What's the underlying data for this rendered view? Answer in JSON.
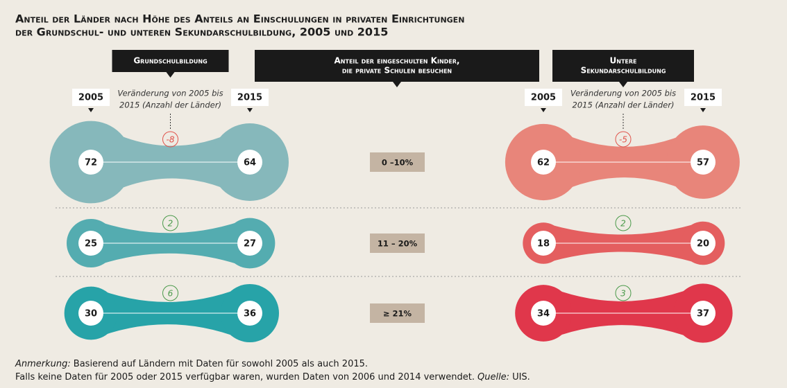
{
  "chart_data": {
    "type": "dumbbell",
    "title": [
      "Anteil der Länder nach Höhe des Anteils an Einschulungen in privaten Einrichtungen",
      "der Grundschul- und unteren Sekundarschulbildung, 2005 und 2015"
    ],
    "center_header": [
      "Anteil der eingeschulten Kinder,",
      "die private Schulen besuchen"
    ],
    "years": [
      "2005",
      "2015"
    ],
    "change_label": [
      "Veränderung von 2005 bis",
      "2015 (Anzahl der Länder)"
    ],
    "categories": [
      "0 –10%",
      "11 – 20%",
      "≥ 21%"
    ],
    "series": [
      {
        "header": [
          "Grundschulbildung"
        ],
        "colors": [
          "#86b8bb",
          "#54acb0",
          "#27a3a8"
        ],
        "start": [
          72,
          25,
          30
        ],
        "end": [
          64,
          27,
          36
        ],
        "change": [
          -8,
          2,
          6
        ]
      },
      {
        "header": [
          "Untere",
          "Sekundarschulbildung"
        ],
        "colors": [
          "#e8857a",
          "#e45e5f",
          "#e0374b"
        ],
        "start": [
          62,
          18,
          34
        ],
        "end": [
          57,
          20,
          37
        ],
        "change": [
          -5,
          2,
          3
        ]
      }
    ],
    "note": {
      "label": "Anmerkung:",
      "text": "Basierend auf Ländern mit Daten für sowohl 2005 als auch 2015."
    },
    "source_line": {
      "text": "Falls keine Daten für 2005 oder 2015 verfügbar waren, wurden Daten von 2006 und 2014 verwendet.",
      "label": "Quelle:",
      "source": "UIS."
    }
  }
}
